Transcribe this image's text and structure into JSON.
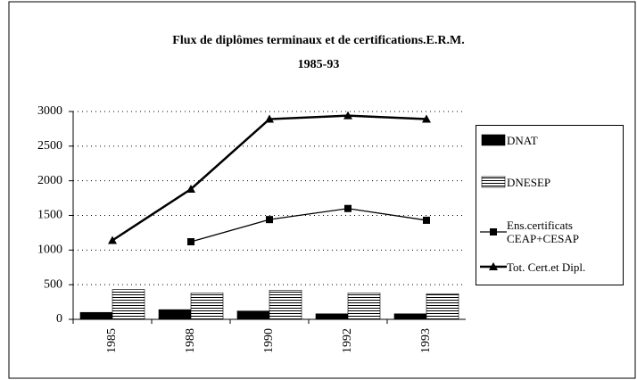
{
  "chart_data": {
    "type": "bar",
    "title": "Flux de diplômes terminaux et de certifications.E.R.M.",
    "subtitle": "1985-93",
    "categories": [
      "1985",
      "1988",
      "1990",
      "1992",
      "1993"
    ],
    "series": [
      {
        "name": "DNAT",
        "type": "bar",
        "color": "#000000",
        "values": [
          100,
          140,
          120,
          80,
          80
        ]
      },
      {
        "name": "DNESEP",
        "type": "bar",
        "color": "#ffffff",
        "values": [
          430,
          380,
          420,
          380,
          370
        ]
      },
      {
        "name": "Ens.certificats\nCEAP+CESAP",
        "type": "line",
        "color": "#000000",
        "values": [
          null,
          1120,
          1440,
          1600,
          1430
        ]
      },
      {
        "name": "Tot. Cert.et Dipl.",
        "type": "line",
        "color": "#000000",
        "values": [
          1140,
          1880,
          2890,
          2940,
          2890
        ]
      }
    ],
    "ylim": [
      0,
      3000
    ],
    "yticks": [
      0,
      500,
      1000,
      1500,
      2000,
      2500,
      3000
    ],
    "grid": true
  }
}
